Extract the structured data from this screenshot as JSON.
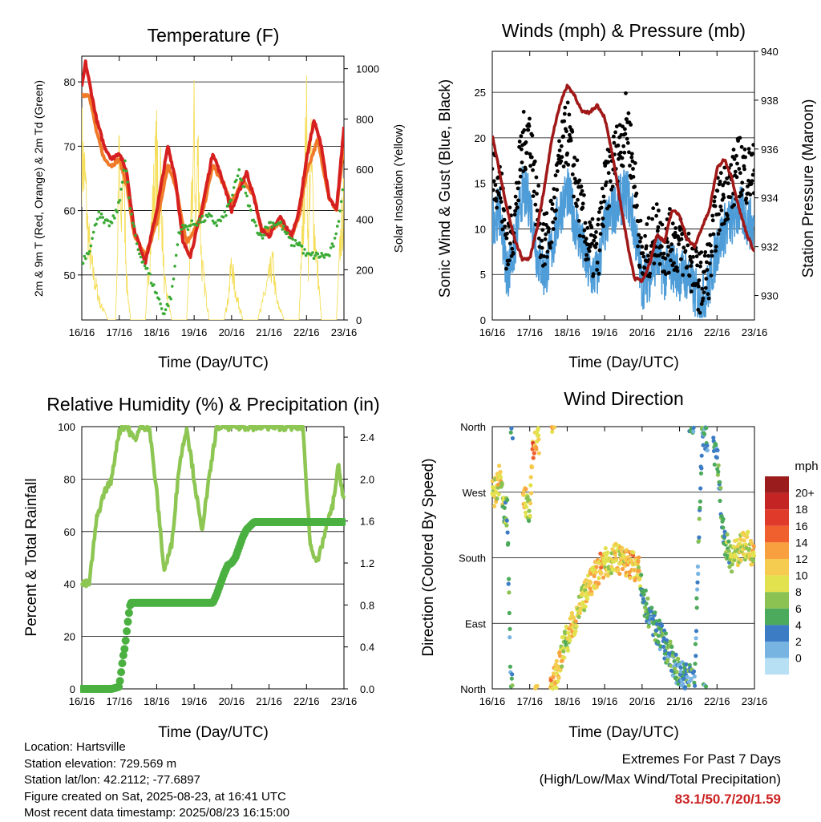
{
  "panels": {
    "temperature": {
      "title": "Temperature (F)",
      "xlabel": "Time (Day/UTC)",
      "ylabel_left": "2m & 9m T (Red, Orange) & 2m Td (Green)",
      "ylabel_right": "Solar Insolation (Yellow)"
    },
    "winds": {
      "title": "Winds (mph) & Pressure (mb)",
      "xlabel": "Time (Day/UTC)",
      "ylabel_left": "Sonic Wind & Gust (Blue, Black)",
      "ylabel_right": "Station Pressure (Maroon)"
    },
    "humidity": {
      "title": "Relative Humidity (%) & Precipitation (in)",
      "xlabel": "Time (Day/UTC)",
      "ylabel_left": "Percent & Total Rainfall"
    },
    "direction": {
      "title": "Wind Direction",
      "xlabel": "Time (Day/UTC)",
      "ylabel_left": "Direction (Colored By Speed)",
      "legend_title": "mph"
    }
  },
  "footer": {
    "location": "Location: Hartsville",
    "elevation": "Station elevation: 729.569 m",
    "latlon": "Station lat/lon: 42.2112; -77.6897",
    "created": "Figure created on Sat, 2025-08-23, at 16:41 UTC",
    "recent": "Most recent data timestamp: 2025/08/23 16:15:00",
    "extremes_title": "Extremes For Past 7 Days",
    "extremes_sub": "(High/Low/Max Wind/Total Precipitation)",
    "extremes_values": "83.1/50.7/20/1.59"
  },
  "chart_data": [
    {
      "type": "line",
      "title": "Temperature (F)",
      "xlabel": "Time (Day/UTC)",
      "ylabel": "2m & 9m T (Red, Orange) & 2m Td (Green)",
      "y2label": "Solar Insolation (Yellow)",
      "x_ticks": [
        "16/16",
        "17/16",
        "18/16",
        "19/16",
        "20/16",
        "21/16",
        "22/16",
        "23/16"
      ],
      "ylim": [
        43,
        84
      ],
      "y_ticks": [
        50,
        60,
        70,
        80
      ],
      "y2lim": [
        0,
        1050
      ],
      "y2_ticks": [
        0,
        200,
        400,
        600,
        800,
        1000
      ],
      "colors": {
        "t2m": "#d62020",
        "t9m": "#f07a28",
        "td": "#3aaa35",
        "solar": "#f5de5a"
      },
      "series": [
        {
          "name": "2m T",
          "x": [
            0,
            0.1,
            0.2,
            0.4,
            0.6,
            0.8,
            1.0,
            1.2,
            1.4,
            1.7,
            2.0,
            2.3,
            2.5,
            2.7,
            2.9,
            3.2,
            3.5,
            3.8,
            4.0,
            4.2,
            4.4,
            4.6,
            4.8,
            5.0,
            5.3,
            5.6,
            5.8,
            6.0,
            6.2,
            6.4,
            6.6,
            6.8,
            7.0
          ],
          "y": [
            79,
            83,
            80,
            74,
            70,
            68,
            69,
            66,
            57,
            52,
            60,
            70,
            65,
            55,
            53,
            60,
            69,
            64,
            60,
            63,
            66,
            62,
            57,
            56,
            59,
            56,
            60,
            68,
            74,
            70,
            62,
            60,
            73
          ]
        },
        {
          "name": "9m T",
          "x": [
            0,
            0.2,
            0.4,
            0.6,
            0.8,
            1.0,
            1.2,
            1.4,
            1.7,
            2.0,
            2.3,
            2.5,
            2.8,
            3.2,
            3.5,
            3.8,
            4.0,
            4.3,
            4.6,
            4.8,
            5.0,
            5.3,
            5.6,
            5.8,
            6.0,
            6.3,
            6.6,
            6.8,
            7.0
          ],
          "y": [
            78,
            78,
            72,
            68,
            67,
            68,
            64,
            56,
            53,
            58,
            67,
            64,
            55,
            59,
            67,
            64,
            61,
            65,
            62,
            57,
            57,
            58,
            56,
            59,
            66,
            71,
            62,
            60,
            70
          ]
        },
        {
          "name": "2m Td",
          "x": [
            0,
            0.2,
            0.3,
            0.45,
            0.6,
            0.8,
            1.0,
            1.15,
            1.3,
            1.5,
            1.8,
            2.0,
            2.2,
            2.4,
            2.6,
            3.0,
            3.4,
            3.6,
            3.8,
            4.0,
            4.2,
            4.4,
            4.6,
            4.8,
            5.0,
            5.3,
            5.6,
            5.8,
            6.0,
            6.3,
            6.6,
            6.8,
            7.0
          ],
          "y": [
            52,
            54,
            56,
            60,
            58,
            58,
            61,
            68,
            60,
            54,
            50,
            47,
            44,
            47,
            57,
            58,
            59,
            58,
            59,
            62,
            66,
            62,
            58,
            56,
            58,
            58,
            55,
            55,
            53,
            53,
            53,
            56,
            65
          ]
        },
        {
          "name": "Solar",
          "x": [
            0,
            0.1,
            0.15,
            0.25,
            0.35,
            0.5,
            0.7,
            0.9,
            0.95,
            1.0,
            1.05,
            1.1,
            1.2,
            1.3,
            1.5,
            1.7,
            1.8,
            1.9,
            2.0,
            2.05,
            2.1,
            2.2,
            2.4,
            2.6,
            2.8,
            2.9,
            3.0,
            3.05,
            3.1,
            3.2,
            3.4,
            3.6,
            3.8,
            3.9,
            4.0,
            4.1,
            4.3,
            4.5,
            4.7,
            4.9,
            5.1,
            5.2,
            5.4,
            5.6,
            5.8,
            5.9,
            6.0,
            6.05,
            6.1,
            6.2,
            6.4,
            6.6,
            6.8,
            6.9,
            7.0
          ],
          "y": [
            900,
            700,
            500,
            300,
            200,
            80,
            0,
            0,
            300,
            900,
            400,
            900,
            200,
            0,
            0,
            0,
            300,
            600,
            880,
            500,
            780,
            200,
            0,
            0,
            0,
            400,
            980,
            500,
            900,
            300,
            0,
            0,
            0,
            100,
            300,
            150,
            0,
            0,
            0,
            150,
            300,
            100,
            0,
            0,
            0,
            500,
            1000,
            300,
            900,
            500,
            0,
            0,
            0,
            400,
            600
          ]
        }
      ]
    },
    {
      "type": "line",
      "title": "Winds (mph) & Pressure (mb)",
      "xlabel": "Time (Day/UTC)",
      "ylabel": "Sonic Wind & Gust (Blue, Black)",
      "y2label": "Station Pressure (Maroon)",
      "x_ticks": [
        "16/16",
        "17/16",
        "18/16",
        "19/16",
        "20/16",
        "21/16",
        "22/16",
        "23/16"
      ],
      "ylim": [
        0,
        29.5
      ],
      "y_ticks": [
        0,
        5,
        10,
        15,
        20,
        25
      ],
      "y2lim": [
        929.0,
        940.0
      ],
      "y2_ticks": [
        930,
        932,
        934,
        936,
        938,
        940
      ],
      "colors": {
        "wind": "#4e9dd8",
        "gust": "#000000",
        "pressure": "#a01818"
      },
      "series": [
        {
          "name": "Sonic Wind",
          "x": [
            0,
            0.2,
            0.4,
            0.6,
            0.8,
            1.0,
            1.2,
            1.4,
            1.6,
            1.8,
            2.0,
            2.2,
            2.4,
            2.6,
            2.8,
            3.0,
            3.2,
            3.4,
            3.6,
            3.8,
            4.0,
            4.2,
            4.4,
            4.6,
            4.8,
            5.0,
            5.2,
            5.4,
            5.6,
            5.8,
            6.0,
            6.2,
            6.4,
            6.6,
            6.8,
            7.0
          ],
          "y": [
            11,
            12,
            5,
            8,
            14,
            13,
            7,
            5,
            8,
            12,
            14,
            11,
            8,
            5,
            5,
            10,
            12,
            13,
            14,
            10,
            4,
            5,
            7,
            5,
            6,
            5,
            5,
            3,
            2,
            4,
            8,
            10,
            11,
            12,
            11,
            10
          ]
        },
        {
          "name": "Gust",
          "x": [
            0,
            0.2,
            0.4,
            0.6,
            0.8,
            1.0,
            1.2,
            1.4,
            1.6,
            1.8,
            2.0,
            2.2,
            2.4,
            2.6,
            2.8,
            3.0,
            3.2,
            3.4,
            3.6,
            3.8,
            4.0,
            4.2,
            4.4,
            4.6,
            4.8,
            5.0,
            5.2,
            5.4,
            5.6,
            5.8,
            6.0,
            6.2,
            6.4,
            6.6,
            6.8,
            7.0
          ],
          "y": [
            17,
            15,
            8,
            11,
            19,
            21,
            12,
            8,
            11,
            17,
            21,
            16,
            11,
            8,
            7,
            14,
            17,
            19,
            22,
            15,
            6,
            8,
            10,
            8,
            9,
            8,
            8,
            5,
            4,
            6,
            12,
            14,
            15,
            17,
            16,
            16
          ]
        },
        {
          "name": "Station Pressure",
          "x": [
            0,
            0.2,
            0.4,
            0.6,
            0.8,
            1.0,
            1.2,
            1.4,
            1.6,
            1.8,
            2.0,
            2.2,
            2.4,
            2.6,
            2.8,
            3.0,
            3.2,
            3.4,
            3.6,
            3.8,
            4.0,
            4.2,
            4.4,
            4.6,
            4.8,
            5.0,
            5.2,
            5.4,
            5.6,
            5.8,
            6.0,
            6.2,
            6.4,
            6.6,
            6.8,
            7.0
          ],
          "y": [
            936.6,
            935.0,
            933.5,
            932.3,
            931.5,
            931.5,
            932.8,
            934.5,
            936.5,
            937.8,
            938.6,
            938.2,
            937.5,
            937.5,
            937.8,
            937.3,
            935.8,
            934.0,
            932.2,
            930.7,
            930.6,
            931.3,
            932.5,
            932.2,
            933.5,
            933.3,
            932.3,
            932.0,
            932.8,
            933.5,
            935.2,
            935.6,
            934.8,
            933.5,
            932.5,
            931.8
          ]
        }
      ]
    },
    {
      "type": "line",
      "title": "Relative Humidity (%) & Precipitation (in)",
      "xlabel": "Time (Day/UTC)",
      "ylabel": "Percent & Total Rainfall",
      "x_ticks": [
        "16/16",
        "17/16",
        "18/16",
        "19/16",
        "20/16",
        "21/16",
        "22/16",
        "23/16"
      ],
      "ylim": [
        0,
        100
      ],
      "y_ticks": [
        0,
        20,
        40,
        60,
        80,
        100
      ],
      "y2lim": [
        0,
        2.5
      ],
      "y2_ticks": [
        0.0,
        0.4,
        0.8,
        1.2,
        1.6,
        2.0,
        2.4
      ],
      "colors": {
        "rh": "#8dc653",
        "precip": "#4ab040"
      },
      "series": [
        {
          "name": "RH",
          "x": [
            0,
            0.2,
            0.4,
            0.6,
            0.8,
            0.95,
            1.05,
            1.2,
            1.4,
            1.6,
            1.8,
            2.0,
            2.2,
            2.4,
            2.6,
            2.8,
            3.0,
            3.2,
            3.4,
            3.6,
            3.8,
            4.0,
            4.5,
            5.0,
            5.5,
            5.9,
            6.1,
            6.3,
            6.5,
            6.7,
            6.85,
            7.0
          ],
          "y": [
            40,
            40,
            65,
            75,
            80,
            95,
            100,
            100,
            95,
            100,
            100,
            75,
            45,
            55,
            85,
            100,
            80,
            60,
            80,
            100,
            100,
            100,
            100,
            100,
            100,
            100,
            55,
            48,
            60,
            70,
            85,
            72
          ]
        },
        {
          "name": "Total Rainfall",
          "x": [
            0,
            0.5,
            0.8,
            1.0,
            1.1,
            1.15,
            1.2,
            1.25,
            1.3,
            1.6,
            2.5,
            3.5,
            3.6,
            3.7,
            3.8,
            3.9,
            4.0,
            4.1,
            4.2,
            4.3,
            4.4,
            4.6,
            5.0,
            6.0,
            7.0
          ],
          "y": [
            0,
            0,
            0,
            0.02,
            0.3,
            0.4,
            0.55,
            0.7,
            0.82,
            0.82,
            0.82,
            0.82,
            0.9,
            1.0,
            1.1,
            1.18,
            1.2,
            1.25,
            1.35,
            1.45,
            1.52,
            1.59,
            1.59,
            1.59,
            1.59
          ]
        }
      ]
    },
    {
      "type": "scatter",
      "title": "Wind Direction",
      "xlabel": "Time (Day/UTC)",
      "ylabel": "Direction (Colored By Speed)",
      "x_ticks": [
        "16/16",
        "17/16",
        "18/16",
        "19/16",
        "20/16",
        "21/16",
        "22/16",
        "23/16"
      ],
      "y_ticks": [
        "North",
        "East",
        "South",
        "West",
        "North"
      ],
      "ylim": [
        0,
        360
      ],
      "legend": {
        "title": "mph",
        "labels": [
          "20+",
          "18",
          "16",
          "14",
          "12",
          "10",
          "8",
          "6",
          "4",
          "2",
          "0"
        ],
        "colors": [
          "#9b1c1c",
          "#c42424",
          "#e03a2a",
          "#f0602e",
          "#f8a040",
          "#f5cc50",
          "#e2e24e",
          "#8cc252",
          "#4caa5c",
          "#3c7cc4",
          "#78b4e2",
          "#b8e0f4"
        ]
      },
      "series": [
        {
          "name": "Direction",
          "x": [
            0.1,
            0.2,
            0.3,
            0.4,
            0.5,
            0.6,
            0.8,
            1.0,
            1.1,
            1.2,
            1.3,
            1.5,
            1.7,
            1.9,
            2.0,
            2.1,
            2.3,
            2.5,
            2.7,
            2.9,
            3.1,
            3.3,
            3.5,
            3.7,
            3.9,
            4.0,
            4.2,
            4.4,
            4.6,
            4.8,
            5.0,
            5.2,
            5.4,
            5.6,
            5.8,
            6.0,
            6.2,
            6.4,
            6.6,
            6.8,
            7.0
          ],
          "y": [
            270,
            290,
            250,
            240,
            0,
            5,
            270,
            240,
            340,
            350,
            330,
            0,
            15,
            60,
            70,
            80,
            110,
            130,
            150,
            170,
            175,
            180,
            175,
            170,
            165,
            130,
            100,
            80,
            60,
            40,
            20,
            15,
            10,
            350,
            340,
            320,
            200,
            180,
            190,
            200,
            180
          ],
          "speed": [
            10,
            12,
            8,
            6,
            4,
            6,
            14,
            8,
            16,
            12,
            10,
            14,
            12,
            10,
            8,
            12,
            10,
            10,
            12,
            13,
            10,
            12,
            11,
            13,
            12,
            6,
            5,
            6,
            5,
            6,
            4,
            5,
            4,
            5,
            4,
            5,
            6,
            9,
            10,
            10,
            12
          ]
        }
      ]
    }
  ]
}
